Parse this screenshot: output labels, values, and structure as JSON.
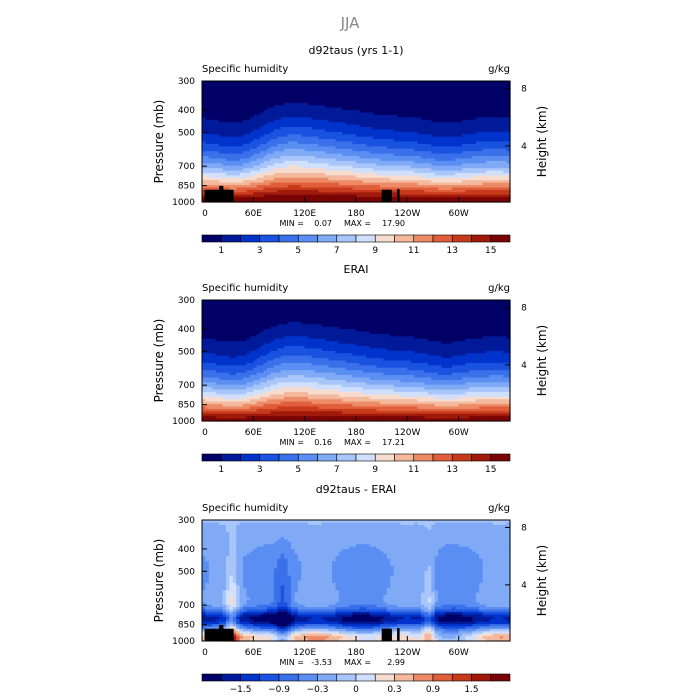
{
  "figure_title": "JJA",
  "chart_data": [
    {
      "type": "heatmap",
      "title": "d92taus (yrs 1-1)",
      "left_label": "Specific humidity",
      "right_label": "g/kg",
      "xlabel": "",
      "ylabel": "Pressure (mb)",
      "y2label": "Height (km)",
      "x_ticks": [
        "0",
        "60E",
        "120E",
        "180",
        "120W",
        "60W"
      ],
      "x_tick_lon": [
        0,
        60,
        120,
        180,
        240,
        300
      ],
      "xlim": [
        0,
        360
      ],
      "y_ticks": [
        300,
        400,
        500,
        700,
        850,
        1000
      ],
      "ylim": [
        1000,
        300
      ],
      "y_log_scale": true,
      "y2_ticks": [
        8,
        4
      ],
      "min_label": "MIN =",
      "min_value": "0.07",
      "max_label": "MAX =",
      "max_value": "17.90",
      "stats": {
        "min": 0.07,
        "max": 17.9
      },
      "colorbar": {
        "colors": [
          "#000066",
          "#001a99",
          "#0033cc",
          "#1a53e0",
          "#3a70ea",
          "#5a8ef2",
          "#80aaf6",
          "#a8c6fa",
          "#d0e0fc",
          "#f6dccf",
          "#f4b89c",
          "#ec8b66",
          "#e05e3c",
          "#c73a1c",
          "#a01a0b",
          "#7a0405"
        ],
        "tick_labels": [
          "1",
          "3",
          "5",
          "7",
          "9",
          "11",
          "13",
          "15"
        ]
      }
    },
    {
      "type": "heatmap",
      "title": "ERAI",
      "left_label": "Specific humidity",
      "right_label": "g/kg",
      "xlabel": "",
      "ylabel": "Pressure (mb)",
      "y2label": "Height (km)",
      "x_ticks": [
        "0",
        "60E",
        "120E",
        "180",
        "120W",
        "60W"
      ],
      "x_tick_lon": [
        0,
        60,
        120,
        180,
        240,
        300
      ],
      "xlim": [
        0,
        360
      ],
      "y_ticks": [
        300,
        400,
        500,
        700,
        850,
        1000
      ],
      "ylim": [
        1000,
        300
      ],
      "y_log_scale": true,
      "y2_ticks": [
        8,
        4
      ],
      "min_label": "MIN =",
      "min_value": "0.16",
      "max_label": "MAX =",
      "max_value": "17.21",
      "stats": {
        "min": 0.16,
        "max": 17.21
      },
      "colorbar": {
        "colors": [
          "#000066",
          "#001a99",
          "#0033cc",
          "#1a53e0",
          "#3a70ea",
          "#5a8ef2",
          "#80aaf6",
          "#a8c6fa",
          "#d0e0fc",
          "#f6dccf",
          "#f4b89c",
          "#ec8b66",
          "#e05e3c",
          "#c73a1c",
          "#a01a0b",
          "#7a0405"
        ],
        "tick_labels": [
          "1",
          "3",
          "5",
          "7",
          "9",
          "11",
          "13",
          "15"
        ]
      }
    },
    {
      "type": "heatmap",
      "title": "d92taus - ERAI",
      "left_label": "Specific humidity",
      "right_label": "g/kg",
      "xlabel": "",
      "ylabel": "Pressure (mb)",
      "y2label": "Height (km)",
      "x_ticks": [
        "0",
        "60E",
        "120E",
        "180",
        "120W",
        "60W"
      ],
      "x_tick_lon": [
        0,
        60,
        120,
        180,
        240,
        300
      ],
      "xlim": [
        0,
        360
      ],
      "y_ticks": [
        300,
        400,
        500,
        700,
        850,
        1000
      ],
      "ylim": [
        1000,
        300
      ],
      "y_log_scale": true,
      "y2_ticks": [
        8,
        4
      ],
      "min_label": "MIN =",
      "min_value": "-3.53",
      "max_label": "MAX =",
      "max_value": "2.99",
      "stats": {
        "min": -3.53,
        "max": 2.99
      },
      "colorbar": {
        "colors": [
          "#000066",
          "#001a99",
          "#0033cc",
          "#1a53e0",
          "#3a70ea",
          "#5a8ef2",
          "#80aaf6",
          "#a8c6fa",
          "#d0e0fc",
          "#f6dccf",
          "#f4b89c",
          "#ec8b66",
          "#e05e3c",
          "#c73a1c",
          "#a01a0b",
          "#7a0405"
        ],
        "tick_labels": [
          "−1.5",
          "−0.9",
          "−0.3",
          "0",
          "0.3",
          "0.9",
          "1.5"
        ]
      }
    }
  ]
}
